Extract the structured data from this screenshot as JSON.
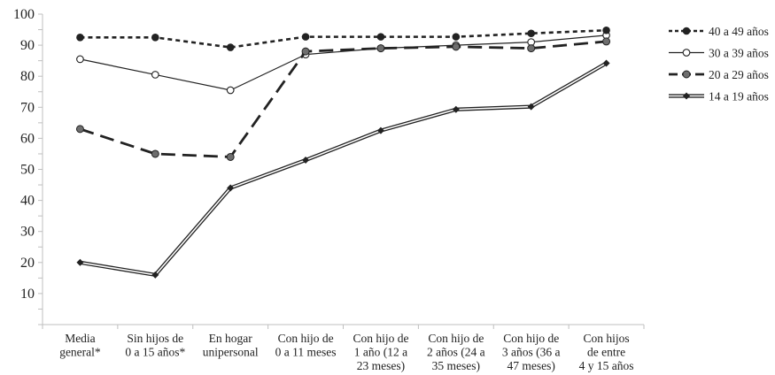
{
  "chart_data": {
    "type": "line",
    "categories": [
      [
        "Media",
        "general*"
      ],
      [
        "Sin hijos de",
        "0 a 15 años*"
      ],
      [
        "En hogar",
        "unipersonal"
      ],
      [
        "Con hijo de",
        "0 a 11 meses"
      ],
      [
        "Con hijo de",
        "1 año (12 a",
        "23 meses)"
      ],
      [
        "Con hijo de",
        "2 años (24 a",
        "35 meses)"
      ],
      [
        "Con hijo de",
        "3 años (36 a",
        "47 meses)"
      ],
      [
        "Con hijos",
        "de entre",
        "4 y 15 años"
      ]
    ],
    "ylim": [
      0,
      100
    ],
    "yticks": [
      10,
      20,
      30,
      40,
      50,
      60,
      70,
      80,
      90,
      100
    ],
    "grid": false,
    "legend_position": "right",
    "series": [
      {
        "name": "40 a 49 años",
        "style": "dotted",
        "marker": "filled-circle",
        "values": [
          92.5,
          92.5,
          89.3,
          92.7,
          92.7,
          92.7,
          93.8,
          94.8
        ]
      },
      {
        "name": "30 a 39 años",
        "style": "thin",
        "marker": "open-circle",
        "values": [
          85.5,
          80.5,
          75.5,
          87.0,
          89.0,
          90.0,
          91.0,
          93.2
        ]
      },
      {
        "name": "20 a 29 años",
        "style": "dashed",
        "marker": "gray-circle",
        "values": [
          63.0,
          55.0,
          54.0,
          88.0,
          89.0,
          89.5,
          89.0,
          91.2
        ]
      },
      {
        "name": "14 a 19 años",
        "style": "double",
        "marker": "diamond",
        "values": [
          20.0,
          16.0,
          44.0,
          53.0,
          62.5,
          69.3,
          70.2,
          84.2
        ]
      }
    ],
    "colors": {
      "axis": "#bfbfbf",
      "line": "#222222",
      "marker_gray": "#6e6e6e"
    }
  }
}
